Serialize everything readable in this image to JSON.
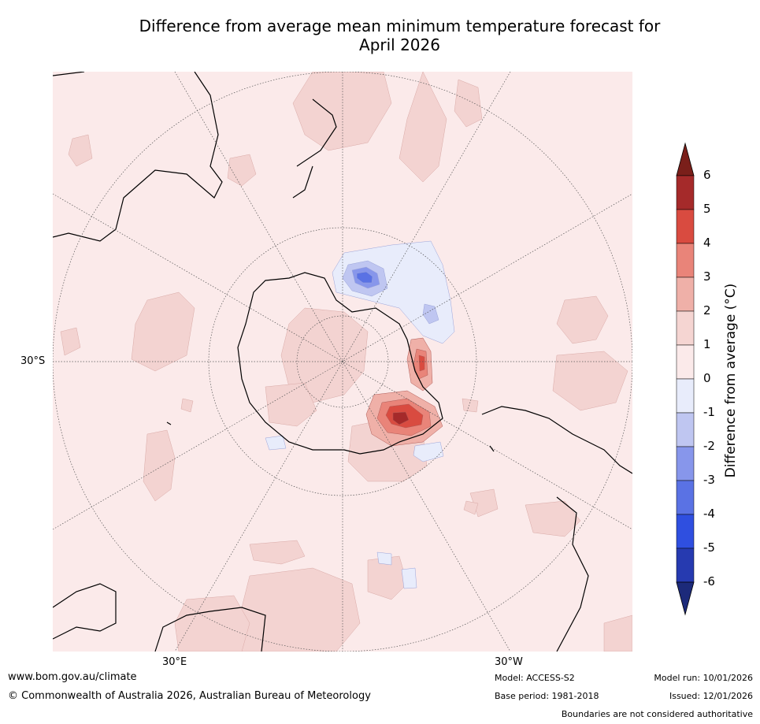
{
  "title_line1": "Difference from average mean minimum temperature forecast for",
  "title_line2": "April 2026",
  "map": {
    "lat_label": "30°S",
    "lon_label_east": "30°E",
    "lon_label_west": "30°W",
    "land_color": "#fbeaea",
    "ocean_base_color": "#fbeaea"
  },
  "colorbar": {
    "label": "Difference from average (°C)",
    "ticks": [
      "6",
      "5",
      "4",
      "3",
      "2",
      "1",
      "0",
      "-1",
      "-2",
      "-3",
      "-4",
      "-5",
      "-6"
    ],
    "colors": [
      "#a52a2a",
      "#d94b40",
      "#e98479",
      "#efb0a8",
      "#f5d5d2",
      "#fbeaea",
      "#e8ecfb",
      "#bfc6f1",
      "#8796eb",
      "#5a72e4",
      "#2f4fe0",
      "#263ab0"
    ],
    "over_color": "#7a1f1a",
    "under_color": "#1c2a7a"
  },
  "footer": {
    "website": "www.bom.gov.au/climate",
    "copyright": "© Commonwealth of Australia 2026, Australian Bureau of Meteorology",
    "model": "Model: ACCESS-S2",
    "base_period": "Base period: 1981-2018",
    "model_run": "Model run: 10/01/2026",
    "issued": "Issued: 12/01/2026",
    "disclaimer": "Boundaries are not considered authoritative"
  }
}
